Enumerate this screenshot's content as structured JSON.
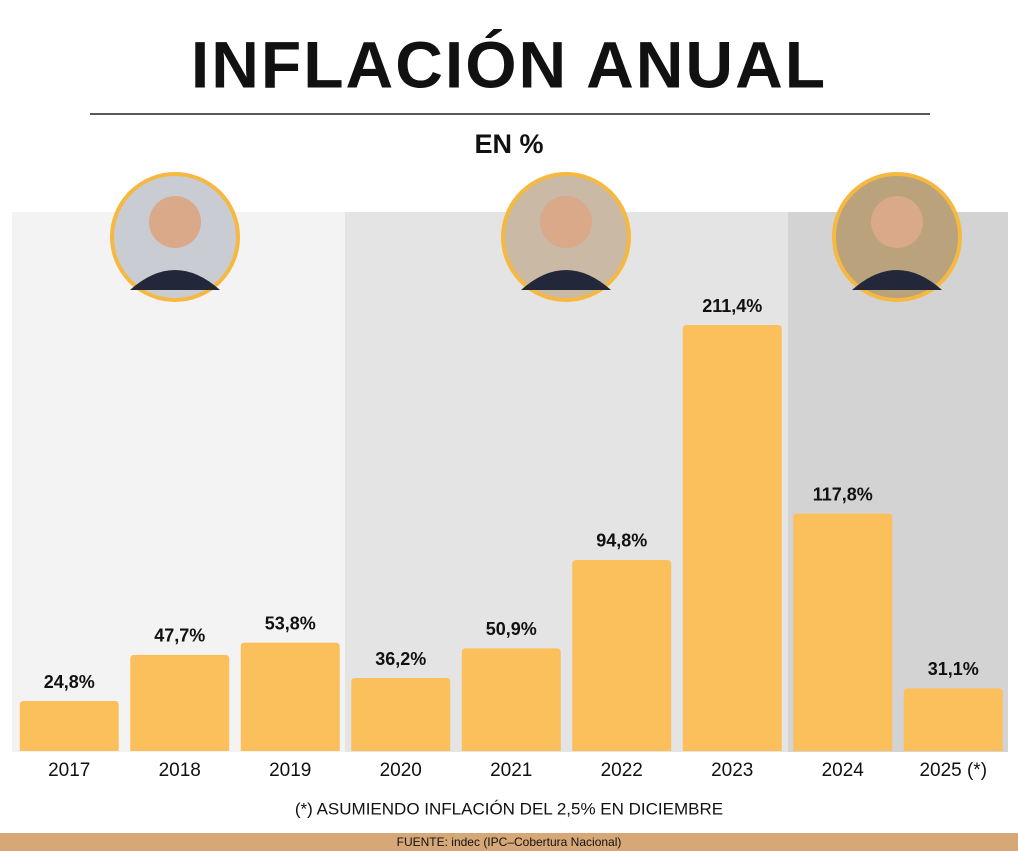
{
  "chart_data": {
    "type": "bar",
    "title": "INFLACIÓN ANUAL",
    "subtitle": "EN %",
    "categories": [
      "2017",
      "2018",
      "2019",
      "2020",
      "2021",
      "2022",
      "2023",
      "2024",
      "2025 (*)"
    ],
    "values": [
      24.8,
      47.7,
      53.8,
      36.2,
      50.9,
      94.8,
      211.4,
      117.8,
      31.1
    ],
    "value_labels": [
      "24,8%",
      "47,7%",
      "53,8%",
      "36,2%",
      "50,9%",
      "94,8%",
      "211,4%",
      "117,8%",
      "31,1%"
    ],
    "color": "#fbbf5c",
    "note": "(*) ASUMIENDO INFLACIÓN DEL 2,5% EN DICIEMBRE",
    "source": "FUENTE: indec (IPC–Cobertura Nacional)"
  }
}
